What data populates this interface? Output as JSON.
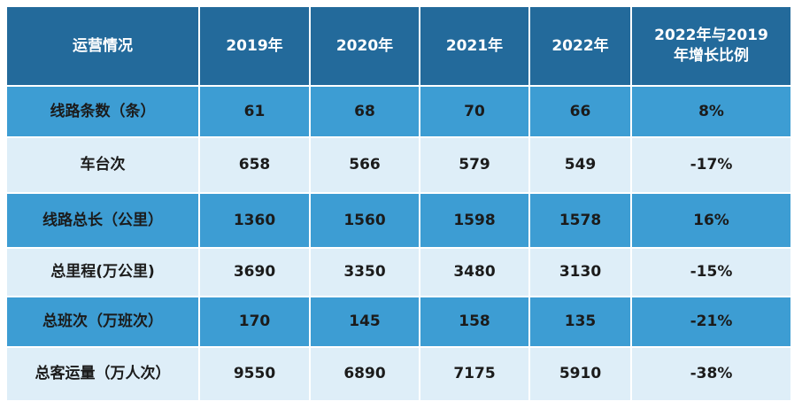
{
  "table": {
    "header": [
      "运营情况",
      "2019年",
      "2020年",
      "2021年",
      "2022年",
      "2022年与2019年增长比例"
    ],
    "rows": [
      [
        "线路条数（条）",
        "61",
        "68",
        "70",
        "66",
        "8%"
      ],
      [
        "车台次",
        "658",
        "566",
        "579",
        "549",
        "-17%"
      ],
      [
        "线路总长（公里）",
        "1360",
        "1560",
        "1598",
        "1578",
        "16%"
      ],
      [
        "总里程(万公里)",
        "3690",
        "3350",
        "3480",
        "3130",
        "-15%"
      ],
      [
        "总班次（万班次）",
        "170",
        "145",
        "158",
        "135",
        "-21%"
      ],
      [
        "总客运量（万人次）",
        "9550",
        "6890",
        "7175",
        "5910",
        "-38%"
      ]
    ]
  }
}
